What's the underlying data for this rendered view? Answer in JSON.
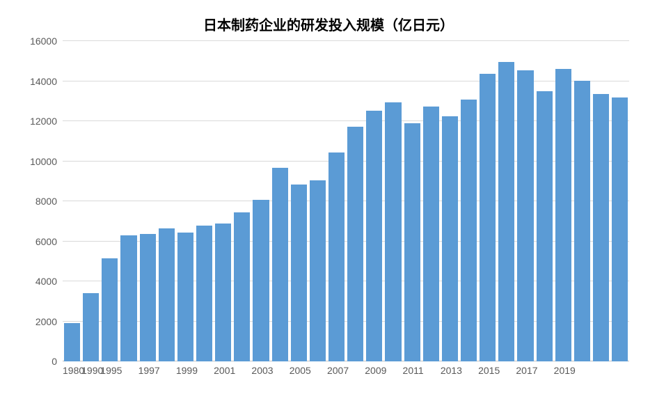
{
  "chart": {
    "type": "bar",
    "title": "日本制药企业的研发投入规模（亿日元）",
    "title_fontsize": 20,
    "title_color": "#000000",
    "background_color": "#ffffff",
    "bar_color": "#5b9bd5",
    "grid_color": "#d9d9d9",
    "axis_line_color": "#bfbfbf",
    "tick_label_color": "#595959",
    "tick_fontsize": 14,
    "ylim": [
      0,
      16000
    ],
    "ytick_step": 2000,
    "yticks": [
      0,
      2000,
      4000,
      6000,
      8000,
      10000,
      12000,
      14000,
      16000
    ],
    "categories": [
      "1980",
      "1990",
      "1995",
      "1997",
      "1999",
      "2001",
      "2003",
      "2005",
      "2007",
      "2009",
      "2011",
      "2013",
      "2015",
      "2017",
      "2019"
    ],
    "category_positions": [
      0,
      1,
      2,
      4,
      6,
      8,
      10,
      12,
      14,
      16,
      18,
      20,
      22,
      24,
      26
    ],
    "values": [
      1900,
      3400,
      5150,
      6280,
      6370,
      6630,
      6430,
      6800,
      6880,
      7460,
      8080,
      9670,
      8820,
      9060,
      10450,
      11720,
      12510,
      12950,
      11910,
      12720,
      12250,
      13070,
      14360,
      14950,
      14540,
      13480,
      14620,
      14020,
      13360,
      13190
    ],
    "bar_gap_ratio": 0.15
  }
}
